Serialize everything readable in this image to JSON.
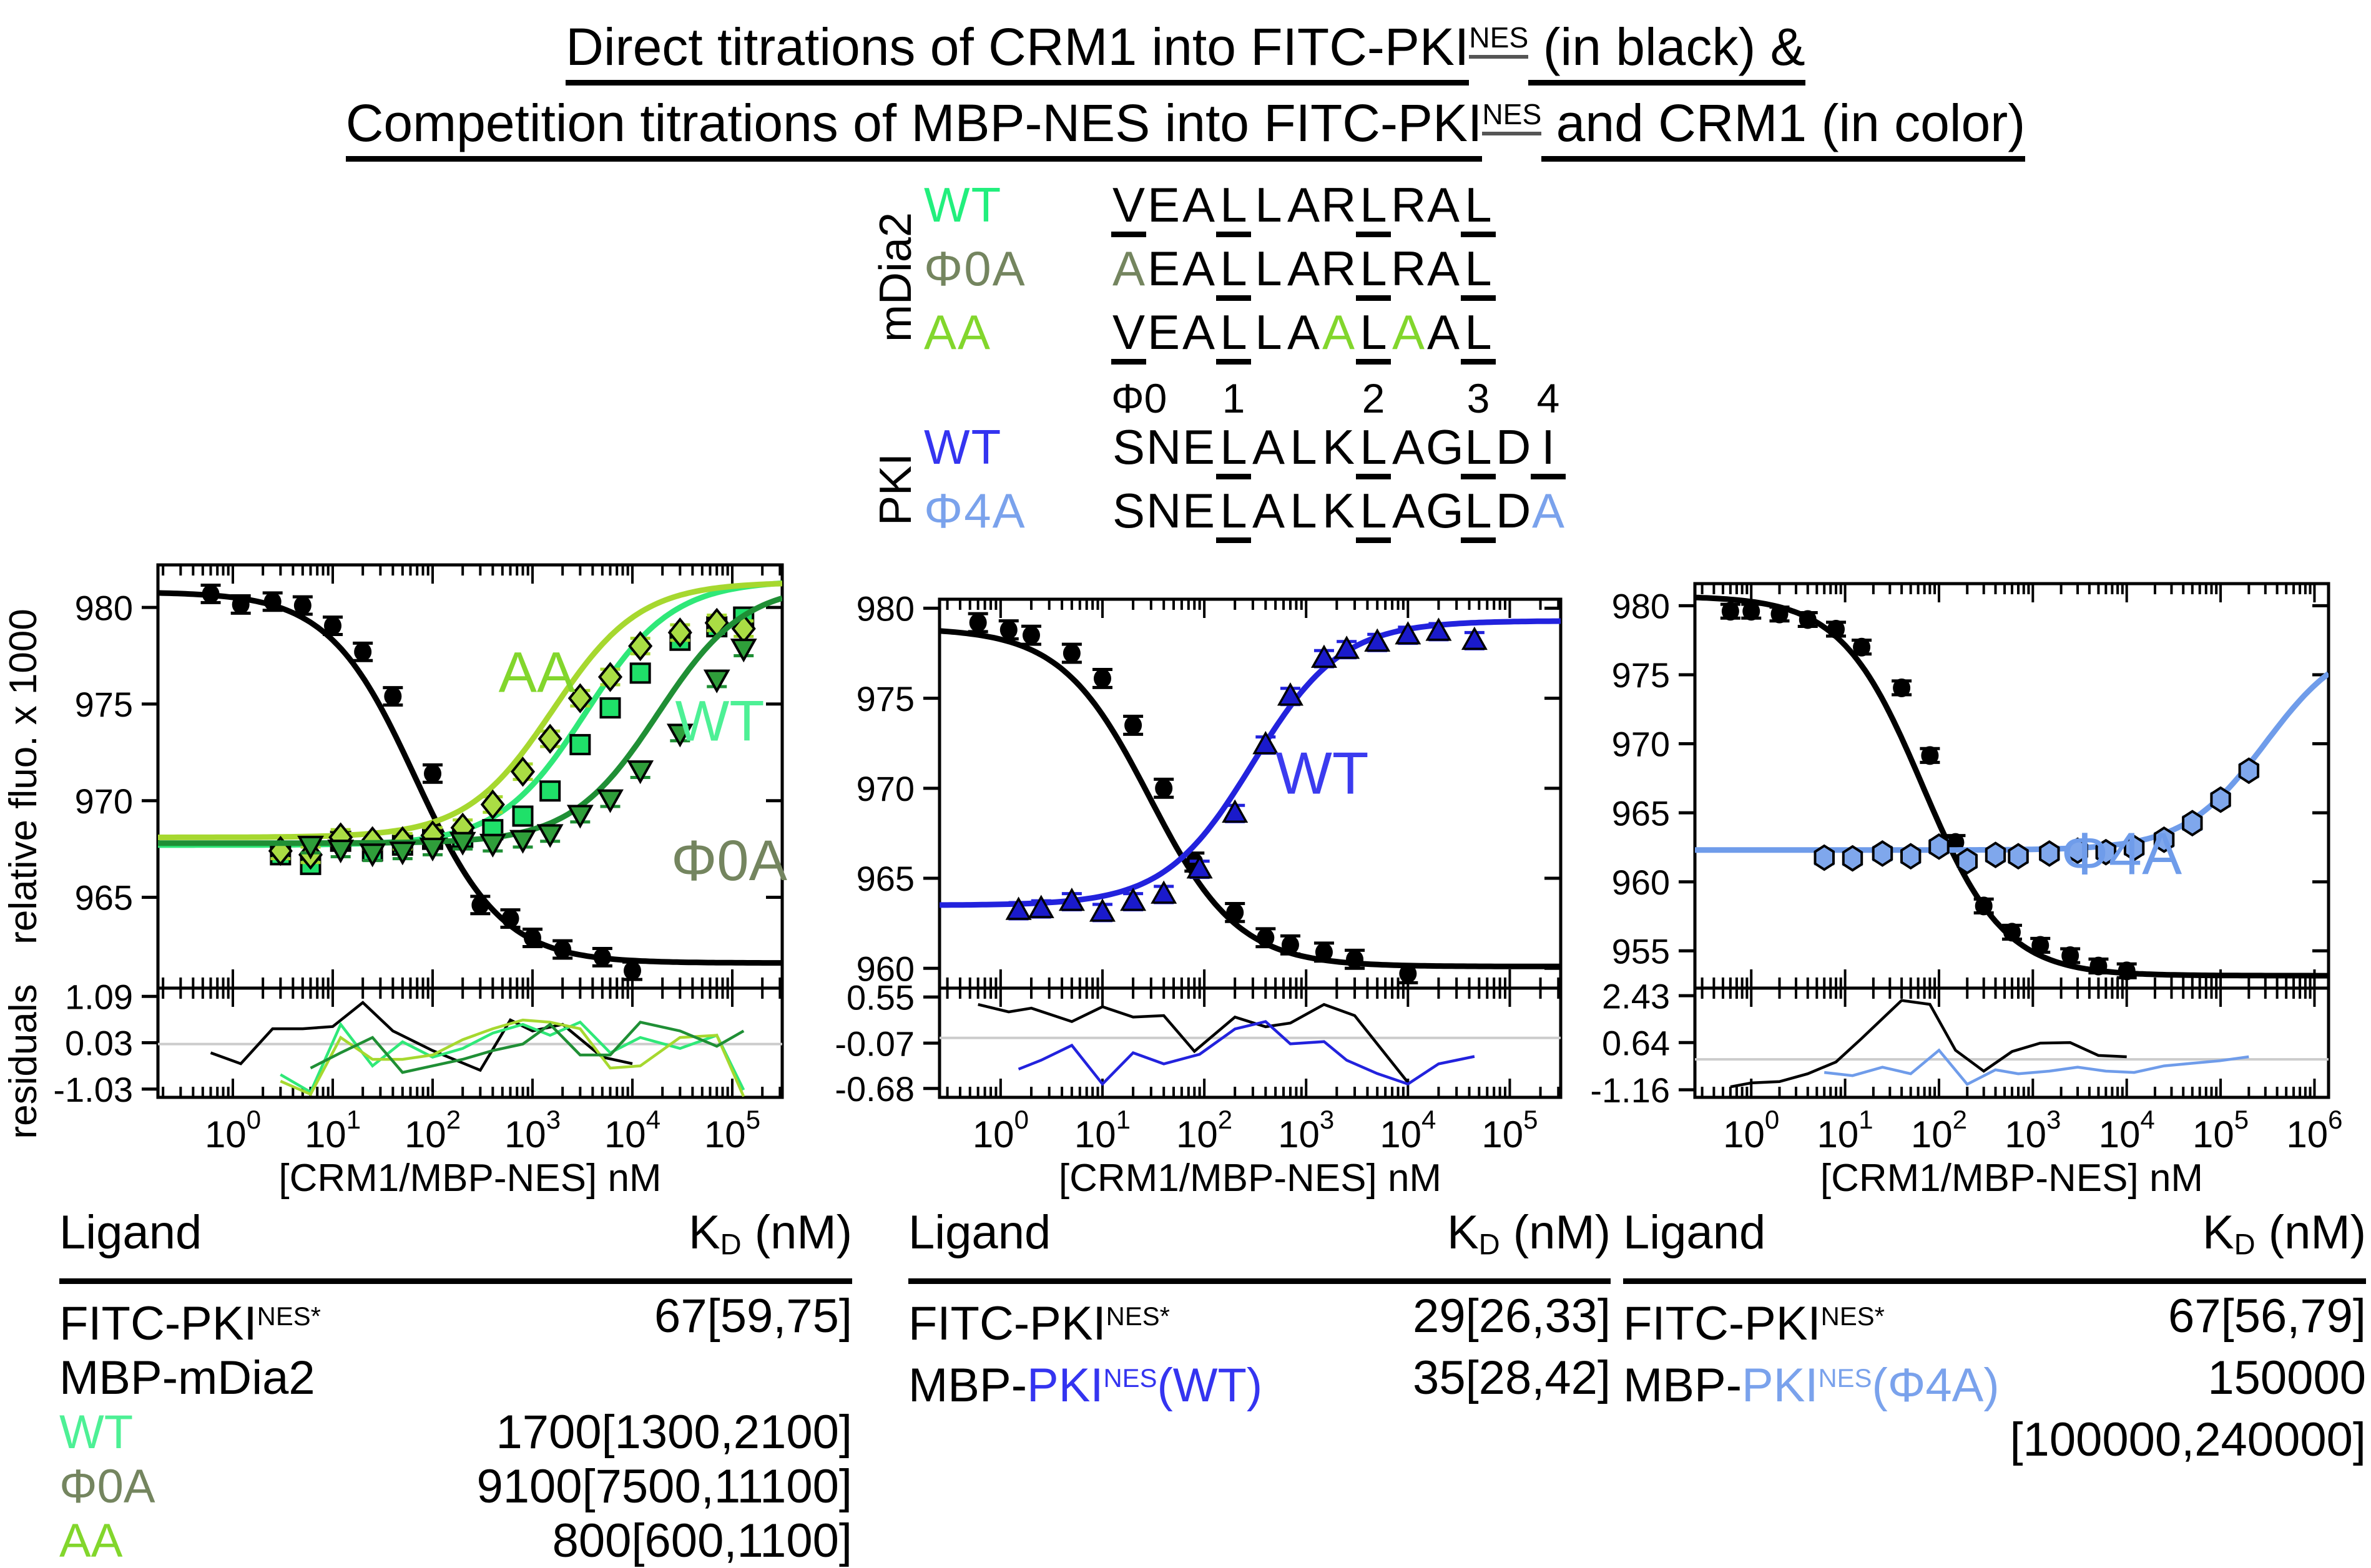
{
  "title": {
    "line1_pre": "Direct titrations of CRM1 into FITC-PKI",
    "line1_sup": "NES",
    "line1_post": " (in black) &",
    "line2_pre": "Competition titrations of MBP-NES into FITC-PKI",
    "line2_sup": "NES",
    "line2_post": " and CRM1 (in color)"
  },
  "colors": {
    "mdia2_wt": "#2FE878",
    "mdia2_wt_label": "#22EF7D",
    "mdia2_phi0a_curve": "#1F8F35",
    "mdia2_phi0a_label": "#74855F",
    "mdia2_aa_curve": "#A6D82F",
    "mdia2_aa_label": "#82D62C",
    "pki_wt_blue": "#2222DD",
    "pki_phi4a_lightblue": "#6F9CEA",
    "black_series": "#000000"
  },
  "alignment": {
    "group1_label": "mDia2",
    "group2_label": "PKI",
    "rows": [
      {
        "group": 1,
        "label": "WT",
        "label_color": "#22EF7D",
        "seq": "VEALLARLRAL",
        "underline": [
          0,
          3,
          7,
          10
        ],
        "colored": {}
      },
      {
        "group": 1,
        "label": "Φ0A",
        "label_color": "#74855F",
        "seq": "AEALLARLRAL",
        "underline": [
          3,
          7,
          10
        ],
        "colored": {
          "0": "#74855F"
        }
      },
      {
        "group": 1,
        "label": "AA",
        "label_color": "#82D62C",
        "seq": "VEALLAALAAL",
        "underline": [
          0,
          3,
          7,
          10
        ],
        "colored": {
          "6": "#82D62C",
          "8": "#82D62C"
        }
      },
      {
        "group": 2,
        "label": "WT",
        "label_color": "#3434F0",
        "seq": "SNELALKLAGLDI",
        "underline": [
          3,
          7,
          10,
          12
        ],
        "colored": {}
      },
      {
        "group": 2,
        "label": "Φ4A",
        "label_color": "#7AA2EC",
        "seq": "SNELALKLAGLDA",
        "underline": [
          3,
          7,
          10
        ],
        "colored": {
          "12": "#7AA2EC"
        }
      }
    ],
    "positions": [
      {
        "text": "Φ0",
        "col": 0
      },
      {
        "text": "1",
        "col": 3
      },
      {
        "text": "2",
        "col": 7
      },
      {
        "text": "3",
        "col": 10
      },
      {
        "text": "4",
        "col": 12
      }
    ]
  },
  "chart_data": [
    {
      "type": "scatter",
      "name": "mDia2 NES competition panel",
      "xlabel": "[CRM1/MBP-NES] nM",
      "ylabel": "relative fluo. x 1000",
      "residuals_label": "residuals",
      "x_log_range": [
        -0.75,
        5.5
      ],
      "x_tick_exponents": [
        0,
        1,
        2,
        3,
        4,
        5
      ],
      "ylim": [
        960.3,
        982.2
      ],
      "y_ticks": [
        965,
        970,
        975,
        980
      ],
      "res_lim": [
        -1.22,
        1.28
      ],
      "res_ticks": [
        1.09,
        0.03,
        -1.03
      ],
      "series": [
        {
          "id": "fitc-pki-direct",
          "name": "FITC-PKI NES* + CRM1 (direct)",
          "kd_reported": "67[59,75]",
          "color": "#000000",
          "marker": "circle",
          "marker_fill": "#000000",
          "fit": {
            "top": 980.8,
            "bottom": 961.6,
            "ec50": 67,
            "dir": "dec"
          },
          "x": [
            0.6,
            1.2,
            2.5,
            5,
            10,
            20,
            40,
            100,
            300,
            600,
            1000,
            2000,
            5000,
            10000
          ],
          "y": [
            980.7,
            980.15,
            980.3,
            980.1,
            979.05,
            977.7,
            975.4,
            971.4,
            964.6,
            963.9,
            962.9,
            962.3,
            961.9,
            961.2
          ],
          "err": 0.45,
          "res_y": [
            -0.2,
            -0.45,
            0.35,
            0.35,
            0.4,
            0.95,
            0.3,
            -0.15,
            -0.6,
            0.55,
            0.3,
            0.45,
            -0.3,
            -0.45
          ]
        },
        {
          "id": "mbp-mdia2-wt",
          "name": "MBP-mDia2 WT",
          "kd_reported": "1700[1300,2100]",
          "color": "#2FE878",
          "marker": "square",
          "marker_fill": "#1FE069",
          "fit": {
            "top": 981.4,
            "bottom": 967.7,
            "ec50": 3400,
            "dir": "inc"
          },
          "x": [
            3,
            6,
            12,
            25,
            50,
            100,
            200,
            400,
            800,
            1500,
            3000,
            6000,
            12000,
            30000,
            70000,
            130000
          ],
          "y": [
            967.2,
            966.7,
            967.9,
            967.4,
            967.7,
            968.0,
            968.1,
            968.5,
            969.2,
            970.5,
            972.9,
            974.8,
            976.6,
            978.3,
            979.0,
            979.5
          ],
          "err": 0.4,
          "res_y": [
            -0.7,
            -1.1,
            0.45,
            -0.5,
            0.05,
            -0.3,
            -0.1,
            0.25,
            0.45,
            0.2,
            0.5,
            -0.2,
            0.15,
            -0.1,
            0.2,
            -1.05
          ]
        },
        {
          "id": "mbp-mdia2-aa",
          "name": "MBP-mDia2 AA",
          "kd_reported": "800[600,1100]",
          "color": "#A6D82F",
          "marker": "diamond",
          "marker_fill": "#AADD44",
          "fit": {
            "top": 981.3,
            "bottom": 968.1,
            "ec50": 1600,
            "dir": "inc"
          },
          "x": [
            3,
            6,
            12,
            25,
            50,
            100,
            200,
            400,
            800,
            1500,
            3000,
            6000,
            12000,
            30000,
            70000,
            130000
          ],
          "y": [
            967.4,
            967.2,
            968.1,
            967.9,
            967.9,
            968.2,
            968.6,
            969.8,
            971.5,
            973.2,
            975.3,
            976.4,
            978.0,
            978.7,
            979.2,
            978.9
          ],
          "err": 0.4,
          "res_y": [
            -0.85,
            -1.15,
            0.15,
            -0.35,
            -0.35,
            -0.25,
            0.1,
            0.35,
            0.55,
            0.5,
            0.35,
            -0.55,
            -0.5,
            0.15,
            0.2,
            -1.2
          ]
        },
        {
          "id": "mbp-mdia2-phi0a",
          "name": "MBP-mDia2 Φ0A",
          "kd_reported": "9100[7500,11100]",
          "color": "#1F8F35",
          "marker": "triangle-down",
          "marker_fill": "#2F9E3A",
          "fit": {
            "top": 981.2,
            "bottom": 967.8,
            "ec50": 18000,
            "dir": "inc"
          },
          "x": [
            6,
            12,
            25,
            50,
            100,
            200,
            400,
            800,
            1500,
            3000,
            6000,
            12000,
            30000,
            70000,
            130000
          ],
          "y": [
            967.7,
            967.5,
            967.3,
            967.4,
            967.6,
            967.9,
            967.8,
            968.0,
            968.3,
            969.3,
            970.1,
            971.6,
            973.5,
            976.3,
            977.9
          ],
          "err": 0.4,
          "res_y": [
            -0.55,
            -0.2,
            0.15,
            -0.65,
            -0.5,
            -0.35,
            -0.15,
            0.0,
            0.45,
            -0.25,
            -0.25,
            0.5,
            0.3,
            -0.05,
            0.3
          ]
        }
      ],
      "annotations": [
        {
          "text": "AA",
          "color": "#82D62C",
          "fx": 0.607,
          "fy": 0.3,
          "size": 92
        },
        {
          "text": "WT",
          "color": "#4DF095",
          "fx": 0.9,
          "fy": 0.415,
          "size": 92
        },
        {
          "text": "Φ0A",
          "color": "#74855F",
          "fx": 0.915,
          "fy": 0.745,
          "size": 92
        }
      ]
    },
    {
      "type": "scatter",
      "name": "PKI NES WT competition panel",
      "xlabel": "[CRM1/MBP-NES] nM",
      "ylabel": "",
      "residuals_label": "",
      "x_log_range": [
        -0.6,
        5.5
      ],
      "x_tick_exponents": [
        0,
        1,
        2,
        3,
        4,
        5
      ],
      "ylim": [
        958.9,
        980.5
      ],
      "y_ticks": [
        960,
        965,
        970,
        975,
        980
      ],
      "res_lim": [
        -0.8,
        0.67
      ],
      "res_ticks": [
        0.55,
        -0.07,
        -0.68
      ],
      "series": [
        {
          "id": "fitc-pki-direct",
          "name": "FITC-PKI NES* + CRM1 (direct)",
          "kd_reported": "29[26,33]",
          "color": "#000000",
          "marker": "circle",
          "marker_fill": "#000000",
          "fit": {
            "top": 978.9,
            "bottom": 960.1,
            "ec50": 29,
            "dir": "dec"
          },
          "x": [
            0.6,
            1.2,
            2,
            5,
            10,
            20,
            40,
            80,
            200,
            400,
            700,
            1500,
            3000,
            10000
          ],
          "y": [
            979.2,
            978.8,
            978.5,
            977.5,
            976.1,
            973.5,
            970.0,
            965.9,
            963.1,
            961.7,
            961.3,
            960.9,
            960.5,
            959.7
          ],
          "err": 0.5,
          "res_y": [
            0.45,
            0.35,
            0.4,
            0.22,
            0.42,
            0.28,
            0.3,
            -0.18,
            0.28,
            0.15,
            0.2,
            0.45,
            0.3,
            -0.6
          ]
        },
        {
          "id": "mbp-pki-wt",
          "name": "MBP-PKI NES (WT)",
          "kd_reported": "35[28,42]",
          "color": "#2222DD",
          "marker": "triangle-up",
          "marker_fill": "#1A1ACB",
          "fit": {
            "top": 979.3,
            "bottom": 963.5,
            "ec50": 300,
            "dir": "inc"
          },
          "x": [
            1.5,
            2.5,
            5,
            10,
            20,
            40,
            90,
            200,
            400,
            700,
            1500,
            2500,
            5000,
            10000,
            20000,
            45000
          ],
          "y": [
            963.2,
            963.3,
            963.7,
            963.1,
            963.7,
            964.1,
            965.5,
            968.6,
            972.4,
            975.1,
            977.2,
            977.7,
            978.1,
            978.5,
            978.7,
            978.2
          ],
          "err": 0.45,
          "res_y": [
            -0.42,
            -0.3,
            -0.1,
            -0.62,
            -0.2,
            -0.35,
            -0.22,
            0.12,
            0.22,
            -0.08,
            -0.05,
            -0.3,
            -0.48,
            -0.62,
            -0.35,
            -0.25
          ]
        }
      ],
      "annotations": [
        {
          "text": "WT",
          "color": "#3B3BEF",
          "fx": 0.616,
          "fy": 0.5,
          "size": 96
        }
      ]
    },
    {
      "type": "scatter",
      "name": "PKI NES Φ4A competition panel",
      "xlabel": "[CRM1/MBP-NES] nM",
      "ylabel": "",
      "residuals_label": "",
      "x_log_range": [
        -0.6,
        6.15
      ],
      "x_tick_exponents": [
        0,
        1,
        2,
        3,
        4,
        5,
        6
      ],
      "ylim": [
        952.3,
        981.6
      ],
      "y_ticks": [
        955,
        960,
        965,
        970,
        975,
        980
      ],
      "res_lim": [
        -1.45,
        2.72
      ],
      "res_ticks": [
        2.43,
        0.64,
        -1.16
      ],
      "series": [
        {
          "id": "fitc-pki-direct",
          "name": "FITC-PKI NES* + CRM1 (direct)",
          "kd_reported": "67[56,79]",
          "color": "#000000",
          "marker": "circle",
          "marker_fill": "#000000",
          "fit": {
            "top": 980.7,
            "bottom": 953.2,
            "ec50": 67,
            "dir": "dec"
          },
          "x": [
            0.6,
            1,
            2,
            4,
            8,
            15,
            40,
            80,
            150,
            300,
            600,
            1200,
            2500,
            5000,
            10000
          ],
          "y": [
            979.6,
            979.6,
            979.4,
            979.0,
            978.3,
            977.0,
            974.05,
            969.15,
            962.85,
            958.25,
            956.35,
            955.4,
            954.65,
            953.9,
            953.55
          ],
          "err": 0.5,
          "res_y": [
            -1.05,
            -0.9,
            -0.85,
            -0.55,
            -0.1,
            0.8,
            2.25,
            2.1,
            0.35,
            -0.45,
            0.3,
            0.62,
            0.64,
            0.15,
            0.1
          ]
        },
        {
          "id": "mbp-pki-phi4a",
          "name": "MBP-PKI NES (Φ4A)",
          "kd_reported": "150000[100000,240000]",
          "color": "#6F9CEA",
          "marker": "hexagon",
          "marker_fill": "#7FA7EC",
          "fit": {
            "top": 977.8,
            "bottom": 962.3,
            "ec50": 300000,
            "dir": "inc"
          },
          "x": [
            6,
            12,
            25,
            50,
            100,
            200,
            400,
            700,
            1500,
            3000,
            6000,
            12000,
            25000,
            50000,
            100000,
            200000
          ],
          "y": [
            961.75,
            961.7,
            962.05,
            961.85,
            962.55,
            961.5,
            961.95,
            961.85,
            962.05,
            962.25,
            962.15,
            962.45,
            963.05,
            964.25,
            965.95,
            968.05
          ],
          "err": 0.45,
          "res_y": [
            -0.5,
            -0.62,
            -0.3,
            -0.55,
            0.35,
            -0.95,
            -0.4,
            -0.55,
            -0.45,
            -0.3,
            -0.45,
            -0.5,
            -0.25,
            -0.15,
            -0.05,
            0.1
          ]
        }
      ],
      "annotations": [
        {
          "text": "Φ4A",
          "color": "#6F9CEA",
          "fx": 0.673,
          "fy": 0.718,
          "size": 96
        }
      ]
    }
  ],
  "tables": [
    {
      "header": {
        "ligand": "Ligand",
        "kd_k": "K",
        "kd_sub": "D",
        "kd_unit": " (nM)"
      },
      "rows": [
        {
          "ligand_parts": [
            {
              "t": "FITC-PKI"
            },
            {
              "t": "NES*",
              "sup": true
            }
          ],
          "kd": "67[59,75]"
        },
        {
          "ligand_parts": [
            {
              "t": "MBP-mDia2"
            }
          ],
          "kd": ""
        },
        {
          "ligand_parts": [
            {
              "t": "WT",
              "c": "#4DF095"
            }
          ],
          "kd": "1700[1300,2100]"
        },
        {
          "ligand_parts": [
            {
              "t": "Φ0A",
              "c": "#74855F"
            }
          ],
          "kd": "9100[7500,11100]"
        },
        {
          "ligand_parts": [
            {
              "t": "AA",
              "c": "#82D62C"
            }
          ],
          "kd": "800[600,1100]"
        }
      ]
    },
    {
      "header": {
        "ligand": "Ligand",
        "kd_k": "K",
        "kd_sub": "D",
        "kd_unit": " (nM)"
      },
      "rows": [
        {
          "ligand_parts": [
            {
              "t": "FITC-PKI"
            },
            {
              "t": "NES*",
              "sup": true
            }
          ],
          "kd": "29[26,33]"
        },
        {
          "ligand_parts": [
            {
              "t": "MBP-"
            },
            {
              "t": "PKI",
              "c": "#3434F0"
            },
            {
              "t": "NES",
              "sup": true,
              "c": "#3434F0"
            },
            {
              "t": "(WT)",
              "c": "#3434F0"
            }
          ],
          "kd": "35[28,42]"
        }
      ]
    },
    {
      "header": {
        "ligand": "Ligand",
        "kd_k": "K",
        "kd_sub": "D",
        "kd_unit": " (nM)"
      },
      "rows": [
        {
          "ligand_parts": [
            {
              "t": "FITC-PKI"
            },
            {
              "t": "NES*",
              "sup": true
            }
          ],
          "kd": "67[56,79]"
        },
        {
          "ligand_parts": [
            {
              "t": "MBP-"
            },
            {
              "t": "PKI",
              "c": "#7AA2EC"
            },
            {
              "t": "NES",
              "sup": true,
              "c": "#7AA2EC"
            },
            {
              "t": "(Φ4A)",
              "c": "#7AA2EC"
            }
          ],
          "kd": "150000"
        },
        {
          "ligand_parts": [],
          "kd": "[100000,240000]"
        }
      ]
    }
  ]
}
